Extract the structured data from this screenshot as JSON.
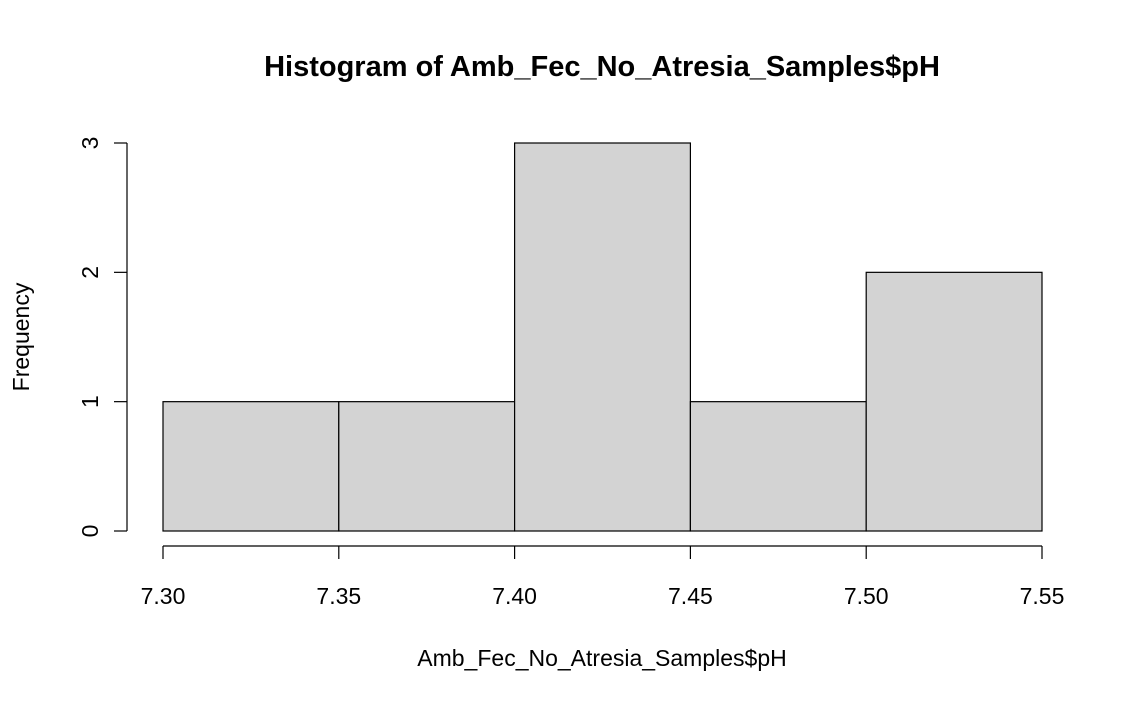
{
  "chart_data": {
    "type": "bar",
    "subtype": "histogram",
    "title": "Histogram of Amb_Fec_No_Atresia_Samples$pH",
    "xlabel": "Amb_Fec_No_Atresia_Samples$pH",
    "ylabel": "Frequency",
    "bins": [
      {
        "start": 7.3,
        "end": 7.35,
        "count": 1
      },
      {
        "start": 7.35,
        "end": 7.4,
        "count": 1
      },
      {
        "start": 7.4,
        "end": 7.45,
        "count": 3
      },
      {
        "start": 7.45,
        "end": 7.5,
        "count": 1
      },
      {
        "start": 7.5,
        "end": 7.55,
        "count": 2
      }
    ],
    "xlim": [
      7.3,
      7.55
    ],
    "ylim": [
      0,
      3
    ],
    "x_ticks": [
      "7.30",
      "7.35",
      "7.40",
      "7.45",
      "7.50",
      "7.55"
    ],
    "y_ticks": [
      "0",
      "1",
      "2",
      "3"
    ],
    "grid": false,
    "colors": {
      "bar_fill": "#d3d3d3",
      "bar_stroke": "#000000"
    }
  }
}
